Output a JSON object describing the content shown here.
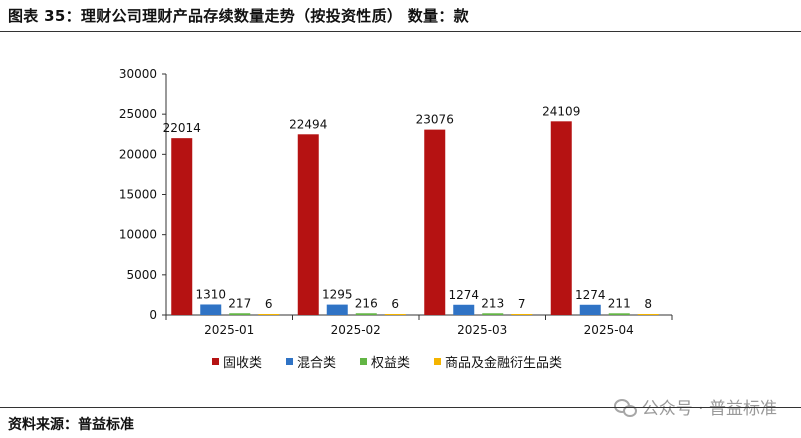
{
  "header": {
    "title": "图表 35：理财公司理财产品存续数量走势（按投资性质）   数量：款"
  },
  "footer": {
    "source": "资料来源：普益标准",
    "watermark": "公众号 · 普益标准"
  },
  "chart_data": {
    "type": "bar",
    "title": "",
    "xlabel": "",
    "ylabel": "",
    "categories": [
      "2025-01",
      "2025-02",
      "2025-03",
      "2025-04"
    ],
    "ylim": [
      0,
      30000
    ],
    "yticks": [
      0,
      5000,
      10000,
      15000,
      20000,
      25000,
      30000
    ],
    "grid": false,
    "legend_position": "bottom",
    "series": [
      {
        "name": "固收类",
        "color": "#b51212",
        "values": [
          22014,
          22494,
          23076,
          24109
        ]
      },
      {
        "name": "混合类",
        "color": "#2f73c5",
        "values": [
          1310,
          1295,
          1274,
          1274
        ]
      },
      {
        "name": "权益类",
        "color": "#62b544",
        "values": [
          217,
          216,
          213,
          211
        ]
      },
      {
        "name": "商品及金融衍生品类",
        "color": "#f4b400",
        "values": [
          6,
          6,
          7,
          8
        ]
      }
    ]
  }
}
